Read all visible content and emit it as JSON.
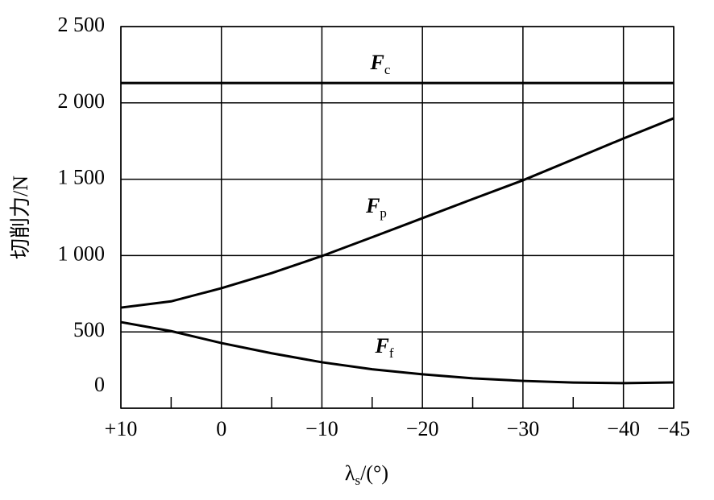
{
  "chart_data": {
    "type": "line",
    "x_label": "λs/(°)",
    "y_label": "切削力/N",
    "x": [
      10,
      5,
      0,
      -5,
      -10,
      -15,
      -20,
      -25,
      -30,
      -35,
      -40,
      -45
    ],
    "series": [
      {
        "name": "Fc",
        "color": "#000000",
        "values": [
          2130,
          2130,
          2130,
          2130,
          2130,
          2130,
          2130,
          2130,
          2130,
          2130,
          2130,
          2130
        ]
      },
      {
        "name": "Fp",
        "color": "#000000",
        "values": [
          659,
          700,
          786,
          885,
          997,
          1120,
          1245,
          1370,
          1493,
          1630,
          1767,
          1899
        ]
      },
      {
        "name": "Ff",
        "color": "#000000",
        "values": [
          564,
          505,
          427,
          360,
          301,
          255,
          222,
          196,
          179,
          168,
          164,
          169
        ]
      }
    ],
    "xlim": [
      10,
      -45
    ],
    "xticks": [
      {
        "value": 10,
        "label": "+10"
      },
      0,
      {
        "value": -10,
        "label": "−10"
      },
      {
        "value": -20,
        "label": "−20"
      },
      {
        "value": -30,
        "label": "−30"
      },
      {
        "value": -40,
        "label": "−40"
      },
      {
        "value": -45,
        "label": "−45"
      }
    ],
    "xminorticks": [
      5,
      -5,
      -15,
      -25,
      -35
    ],
    "ylim": [
      0,
      2500
    ],
    "yticks": [
      0,
      500,
      {
        "value": 1000,
        "label": "1 000"
      },
      {
        "value": 1500,
        "label": "1 500"
      },
      {
        "value": 2000,
        "label": "2 000"
      },
      {
        "value": 2500,
        "label": "2 500"
      }
    ],
    "grid": true
  }
}
